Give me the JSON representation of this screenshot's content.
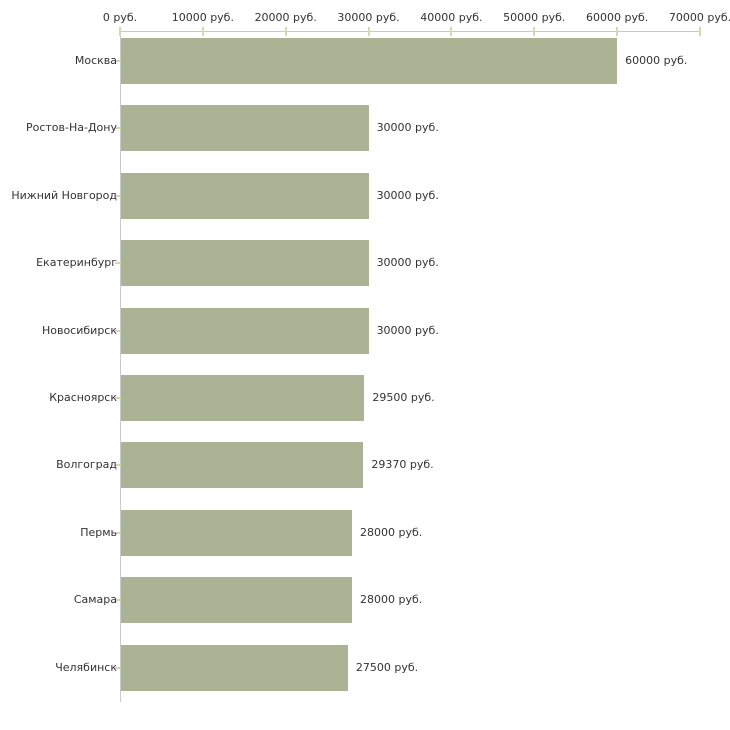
{
  "chart_data": {
    "type": "bar",
    "orientation": "horizontal",
    "title": "",
    "xlabel": "",
    "ylabel": "",
    "unit": "руб.",
    "xlim": [
      0,
      70000
    ],
    "grid": false,
    "legend": null,
    "categories": [
      "Москва",
      "Ростов-На-Дону",
      "Нижний Новгород",
      "Екатеринбург",
      "Новосибирск",
      "Красноярск",
      "Волгоград",
      "Пермь",
      "Самара",
      "Челябинск"
    ],
    "values": [
      60000,
      30000,
      30000,
      30000,
      30000,
      29500,
      29370,
      28000,
      28000,
      27500
    ],
    "value_labels": [
      "60000 руб.",
      "30000 руб.",
      "30000 руб.",
      "30000 руб.",
      "30000 руб.",
      "29500 руб.",
      "29370 руб.",
      "28000 руб.",
      "28000 руб.",
      "27500 руб."
    ],
    "x_ticks": [
      0,
      10000,
      20000,
      30000,
      40000,
      50000,
      60000,
      70000
    ],
    "x_tick_labels": [
      "0 руб.",
      "10000 руб.",
      "20000 руб.",
      "30000 руб.",
      "40000 руб.",
      "50000 руб.",
      "60000 руб.",
      "70000 руб."
    ],
    "colors": {
      "bar": "#acb294",
      "axis_line": "#c9c9c9",
      "tick": "#d6d8b2",
      "text": "#333333",
      "background": "#ffffff"
    }
  }
}
